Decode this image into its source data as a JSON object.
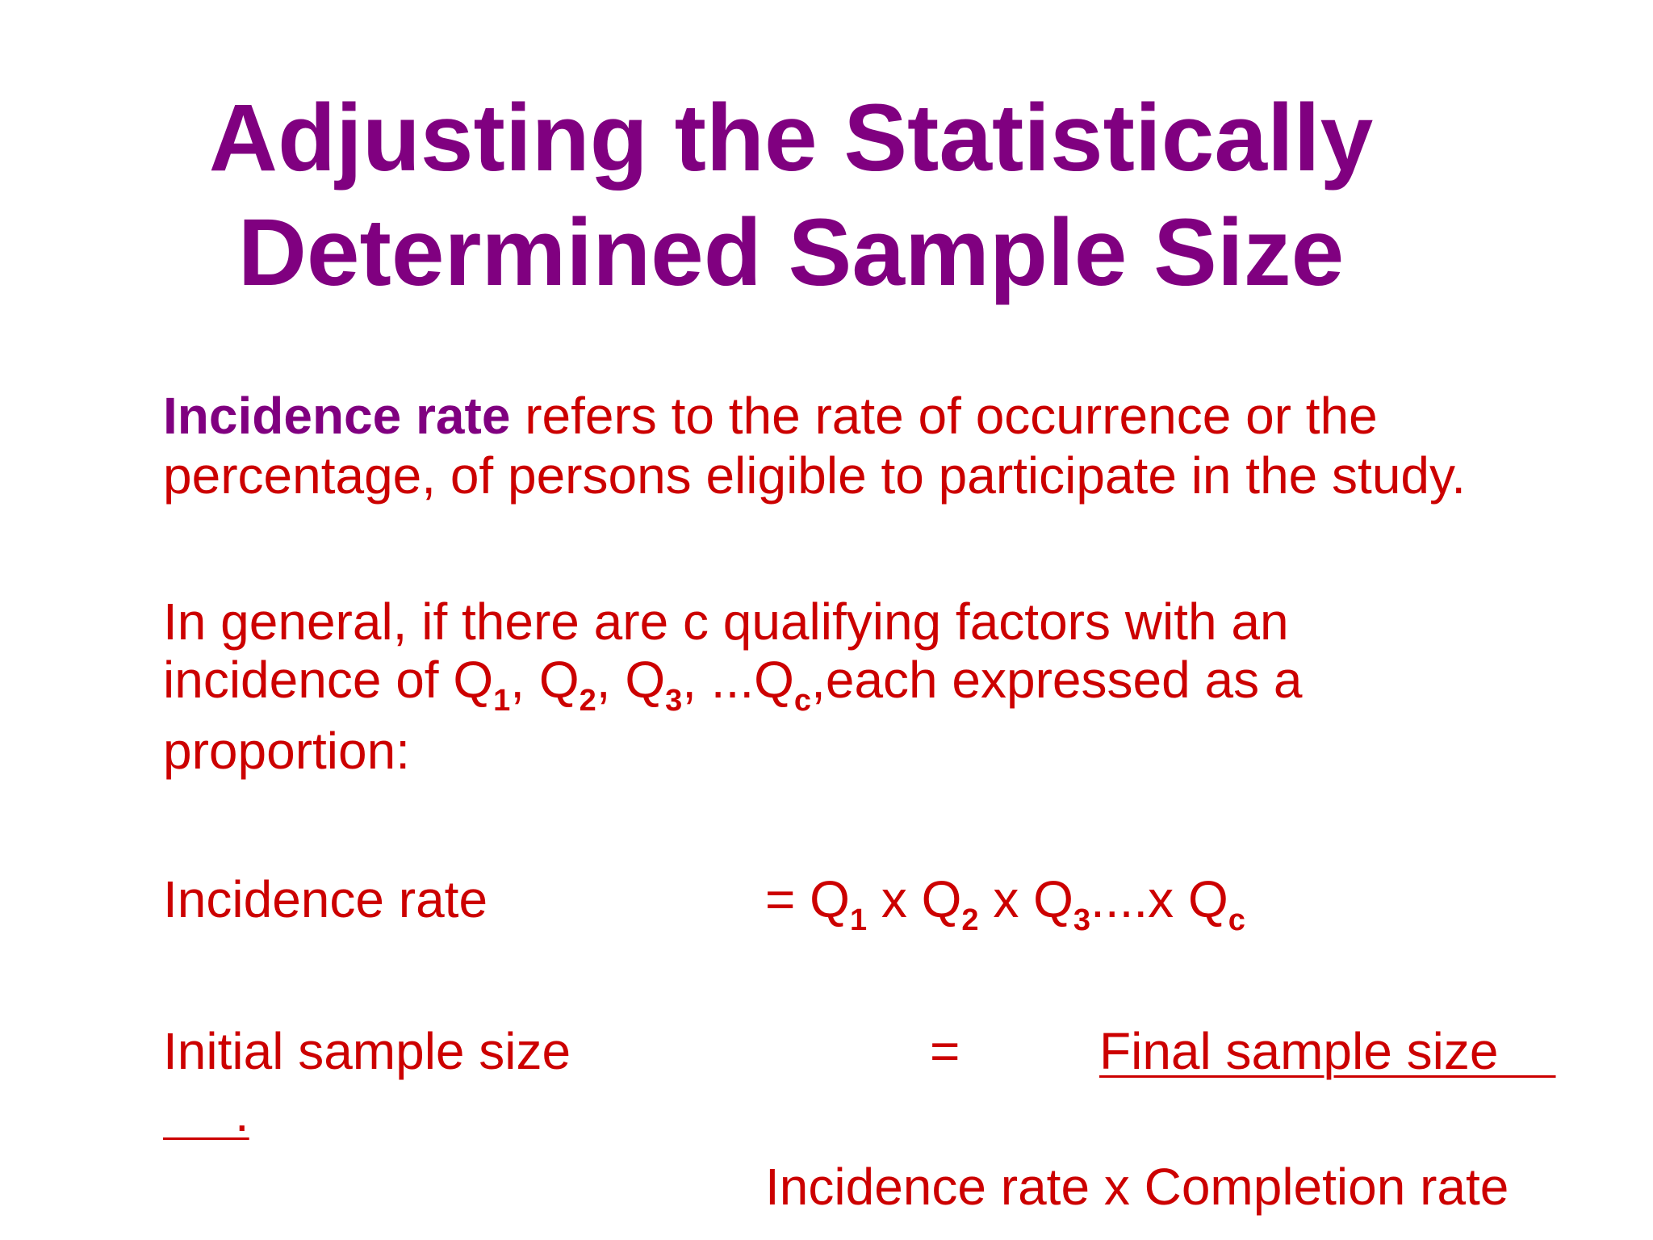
{
  "colors": {
    "title": "#800080",
    "body": "#cc0000",
    "term": "#800080",
    "background": "#ffffff"
  },
  "slide": {
    "title_line1": "Adjusting the Statistically",
    "title_line2": "Determined Sample Size",
    "definition": {
      "term": "Incidence rate",
      "rest_line1": " refers to the rate of occurrence or the",
      "line2": "percentage, of persons eligible to participate in the study."
    },
    "general": {
      "line1": "In general, if there are c qualifying factors with an",
      "line2_prefix": "incidence of Q",
      "s1": "1",
      "sep1": ", Q",
      "s2": "2",
      "sep2": ", Q",
      "s3": "3",
      "sep3": ", ...Q",
      "sc": "c",
      "line2_suffix": ",each expressed as a",
      "line3": "proportion:"
    },
    "formula1": {
      "label": "Incidence rate",
      "eq_prefix": "= Q",
      "s1": "1",
      "x1": " x Q",
      "s2": "2",
      "x2": " x Q",
      "s3": "3",
      "x3": "....x Q",
      "sc": "c"
    },
    "formula2": {
      "label": "Initial sample size",
      "equals": "=",
      "numerator": "Final sample size    ",
      "continuation": "     .",
      "denominator": "Incidence rate x Completion rate"
    }
  }
}
